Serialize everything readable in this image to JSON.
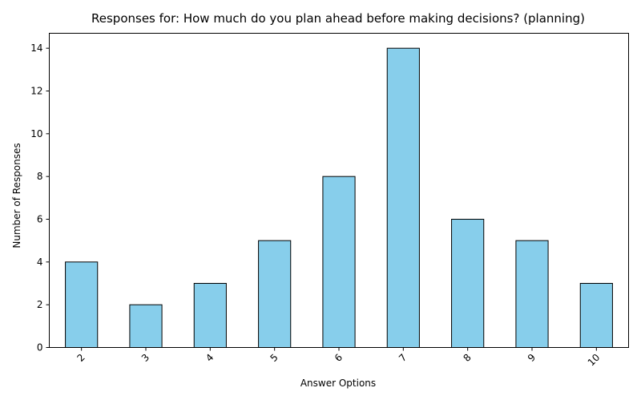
{
  "chart_data": {
    "type": "bar",
    "title": "Responses for: How much do you plan ahead before making decisions? (planning)",
    "xlabel": "Answer Options",
    "ylabel": "Number of Responses",
    "categories": [
      "2",
      "3",
      "4",
      "5",
      "6",
      "7",
      "8",
      "9",
      "10"
    ],
    "values": [
      4,
      2,
      3,
      5,
      8,
      14,
      6,
      5,
      3
    ],
    "ylim": [
      0,
      14.7
    ],
    "yticks": [
      "0",
      "2",
      "4",
      "6",
      "8",
      "10",
      "12",
      "14"
    ],
    "xtick_rotation": "45 degrees",
    "grid": false,
    "legend": "none",
    "bar_color": "#87ceeb",
    "bar_edge_color": "#000000"
  }
}
